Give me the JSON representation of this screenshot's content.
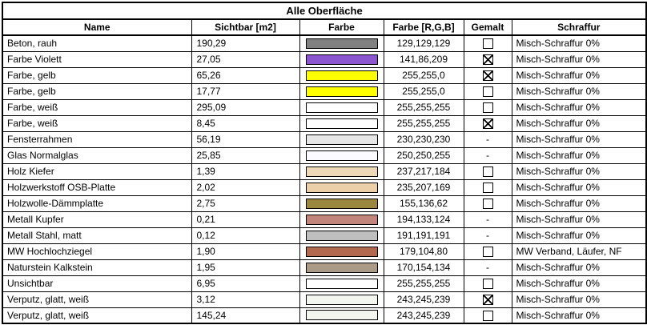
{
  "table": {
    "title": "Alle Oberfläche",
    "columns": [
      "Name",
      "Sichtbar [m2]",
      "Farbe",
      "Farbe [R,G,B]",
      "Gemalt",
      "Schraffur"
    ],
    "dash_label": "-",
    "colors": {
      "grid": "#000000",
      "background": "#ffffff"
    },
    "rows": [
      {
        "name": "Beton, rauh",
        "sichtbar": "190,29",
        "color": "#818181",
        "rgb": "129,129,129",
        "gemalt": "unchecked",
        "schraffur": "Misch-Schraffur 0%"
      },
      {
        "name": "Farbe Violett",
        "sichtbar": "27,05",
        "color": "#8d56d1",
        "rgb": "141,86,209",
        "gemalt": "checked",
        "schraffur": "Misch-Schraffur 0%"
      },
      {
        "name": "Farbe, gelb",
        "sichtbar": "65,26",
        "color": "#ffff00",
        "rgb": "255,255,0",
        "gemalt": "checked",
        "schraffur": "Misch-Schraffur 0%"
      },
      {
        "name": "Farbe, gelb",
        "sichtbar": "17,77",
        "color": "#ffff00",
        "rgb": "255,255,0",
        "gemalt": "unchecked",
        "schraffur": "Misch-Schraffur 0%"
      },
      {
        "name": "Farbe, weiß",
        "sichtbar": "295,09",
        "color": "#ffffff",
        "rgb": "255,255,255",
        "gemalt": "unchecked",
        "schraffur": "Misch-Schraffur 0%"
      },
      {
        "name": "Farbe, weiß",
        "sichtbar": "8,45",
        "color": "#ffffff",
        "rgb": "255,255,255",
        "gemalt": "checked",
        "schraffur": "Misch-Schraffur 0%"
      },
      {
        "name": "Fensterrahmen",
        "sichtbar": "56,19",
        "color": "#e6e6e6",
        "rgb": "230,230,230",
        "gemalt": "dash",
        "schraffur": "Misch-Schraffur 0%"
      },
      {
        "name": "Glas Normalglas",
        "sichtbar": "25,85",
        "color": "#fafaff",
        "rgb": "250,250,255",
        "gemalt": "dash",
        "schraffur": "Misch-Schraffur 0%"
      },
      {
        "name": "Holz Kiefer",
        "sichtbar": "1,39",
        "color": "#edd9b8",
        "rgb": "237,217,184",
        "gemalt": "unchecked",
        "schraffur": "Misch-Schraffur 0%"
      },
      {
        "name": "Holzwerkstoff OSB-Platte",
        "sichtbar": "2,02",
        "color": "#ebcfa9",
        "rgb": "235,207,169",
        "gemalt": "unchecked",
        "schraffur": "Misch-Schraffur 0%"
      },
      {
        "name": "Holzwolle-Dämmplatte",
        "sichtbar": "2,75",
        "color": "#9b883e",
        "rgb": "155,136,62",
        "gemalt": "unchecked",
        "schraffur": "Misch-Schraffur 0%"
      },
      {
        "name": "Metall Kupfer",
        "sichtbar": "0,21",
        "color": "#c2857c",
        "rgb": "194,133,124",
        "gemalt": "dash",
        "schraffur": "Misch-Schraffur 0%"
      },
      {
        "name": "Metall Stahl, matt",
        "sichtbar": "0,12",
        "color": "#bfbfbf",
        "rgb": "191,191,191",
        "gemalt": "dash",
        "schraffur": "Misch-Schraffur 0%"
      },
      {
        "name": "MW Hochlochziegel",
        "sichtbar": "1,90",
        "color": "#b36850",
        "rgb": "179,104,80",
        "gemalt": "unchecked",
        "schraffur": "MW Verband, Läufer, NF"
      },
      {
        "name": "Naturstein Kalkstein",
        "sichtbar": "1,95",
        "color": "#aa9a86",
        "rgb": "170,154,134",
        "gemalt": "dash",
        "schraffur": "Misch-Schraffur 0%"
      },
      {
        "name": "Unsichtbar",
        "sichtbar": "6,95",
        "color": "#ffffff",
        "rgb": "255,255,255",
        "gemalt": "unchecked",
        "schraffur": "Misch-Schraffur 0%"
      },
      {
        "name": "Verputz, glatt, weiß",
        "sichtbar": "3,12",
        "color": "#f3f5ef",
        "rgb": "243,245,239",
        "gemalt": "checked",
        "schraffur": "Misch-Schraffur 0%"
      },
      {
        "name": "Verputz, glatt, weiß",
        "sichtbar": "145,24",
        "color": "#f3f5ef",
        "rgb": "243,245,239",
        "gemalt": "unchecked",
        "schraffur": "Misch-Schraffur 0%"
      }
    ]
  }
}
